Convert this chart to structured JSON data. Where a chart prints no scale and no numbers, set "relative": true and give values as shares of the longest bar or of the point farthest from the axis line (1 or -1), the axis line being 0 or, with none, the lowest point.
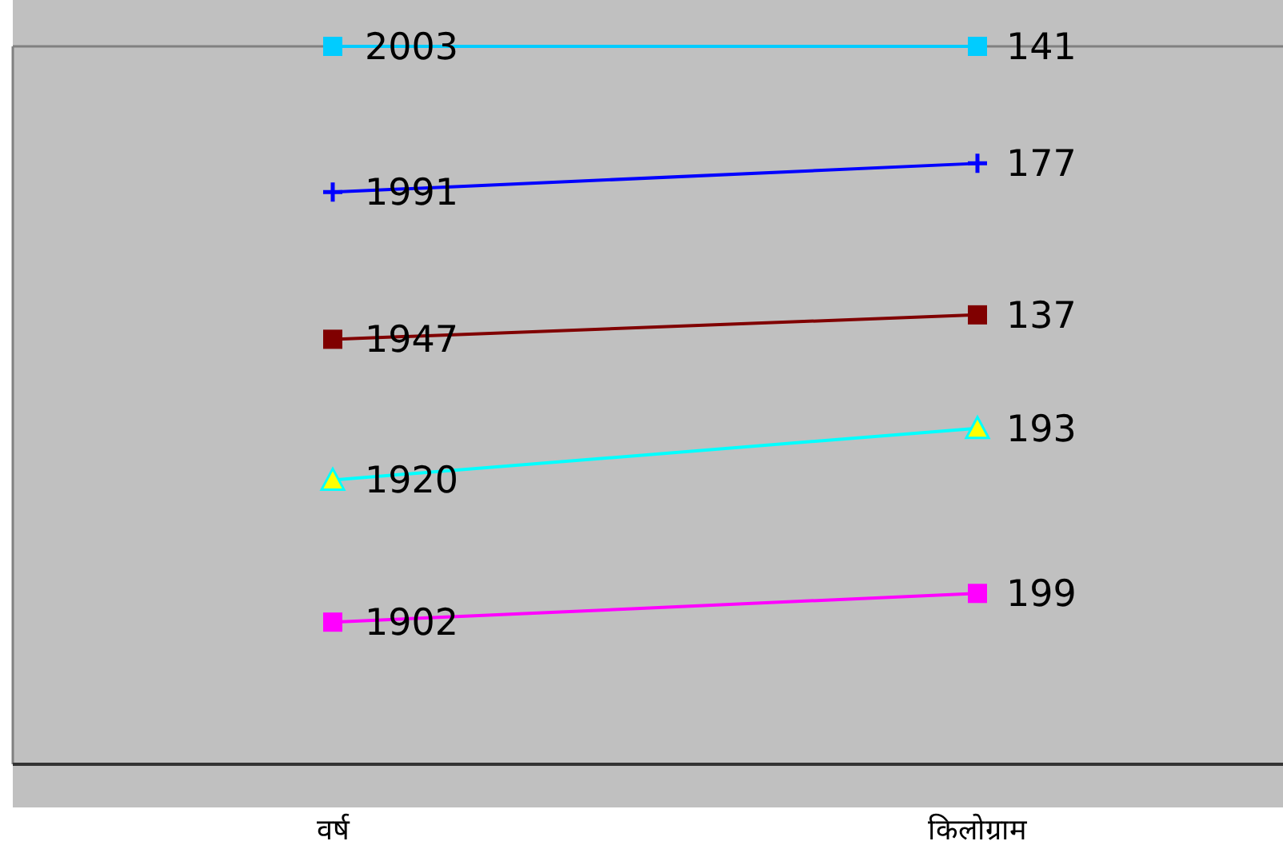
{
  "chart_data": {
    "type": "line",
    "relative": true,
    "categories": [
      "वर्ष",
      "किलोग्राम"
    ],
    "series": [
      {
        "name": "2003",
        "color": "#00ccff",
        "marker": "square",
        "values": [
          1,
          1
        ]
      },
      {
        "name": "1991",
        "color": "#0000ff",
        "marker": "cross",
        "values": [
          0.797,
          0.837
        ]
      },
      {
        "name": "1947",
        "color": "#800000",
        "marker": "square",
        "values": [
          0.592,
          0.626
        ]
      },
      {
        "name": "1920",
        "color": "#00ffff",
        "marker": "triangle",
        "values": [
          0.396,
          0.468
        ]
      },
      {
        "name": "1902",
        "color": "#ff00ff",
        "marker": "square",
        "values": [
          0.198,
          0.238
        ]
      }
    ],
    "annotations": [
      {
        "text": "141",
        "x": "किलोग्राम",
        "y": 1
      },
      {
        "text": "177",
        "x": "किलोग्राम",
        "y": 0.837
      },
      {
        "text": "137",
        "x": "किलोग्राम",
        "y": 0.626
      },
      {
        "text": "193",
        "x": "किलोग्राम",
        "y": 0.468
      },
      {
        "text": "199",
        "x": "किलोग्राम",
        "y": 0.238
      }
    ]
  }
}
